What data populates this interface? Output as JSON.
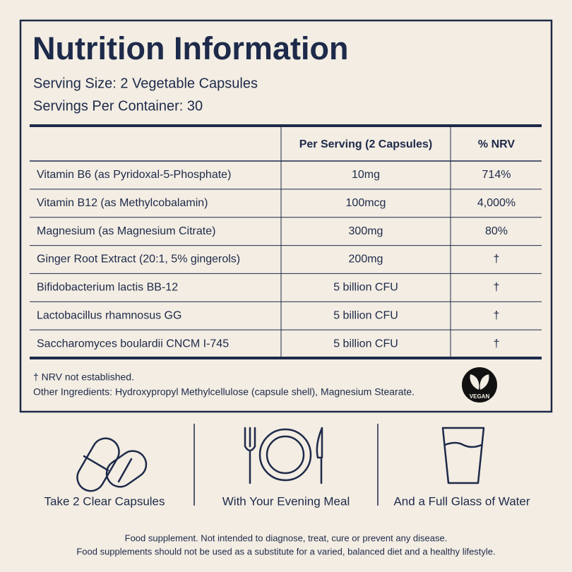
{
  "header": {
    "title": "Nutrition Information",
    "serving_size": "Serving Size: 2 Vegetable Capsules",
    "servings_per_container": "Servings Per Container: 30"
  },
  "table": {
    "columns": [
      "Per Serving (2 Capsules)",
      "% NRV"
    ],
    "rows": [
      [
        "Vitamin B6 (as Pyridoxal-5-Phosphate)",
        "10mg",
        "714%"
      ],
      [
        "Vitamin B12 (as Methylcobalamin)",
        "100mcg",
        "4,000%"
      ],
      [
        "Magnesium (as Magnesium Citrate)",
        "300mg",
        "80%"
      ],
      [
        "Ginger Root Extract (20:1, 5% gingerols)",
        "200mg",
        "†"
      ],
      [
        "Bifidobacterium lactis BB-12",
        "5 billion CFU",
        "†"
      ],
      [
        "Lactobacillus rhamnosus GG",
        "5 billion CFU",
        "†"
      ],
      [
        "Saccharomyces boulardii CNCM I-745",
        "5 billion CFU",
        "†"
      ]
    ]
  },
  "footnotes": [
    "† NRV not established.",
    "Other Ingredients: Hydroxypropyl Methylcellulose (capsule shell), Magnesium Stearate."
  ],
  "badge": "VEGAN",
  "directions": [
    "Take 2 Clear Capsules",
    "With Your Evening Meal",
    "And a Full Glass of Water"
  ],
  "disclaimer": [
    "Food supplement. Not intended to diagnose, treat, cure or prevent any disease.",
    "Food supplements should not be used as a substitute for a varied, balanced diet and a healthy lifestyle."
  ]
}
